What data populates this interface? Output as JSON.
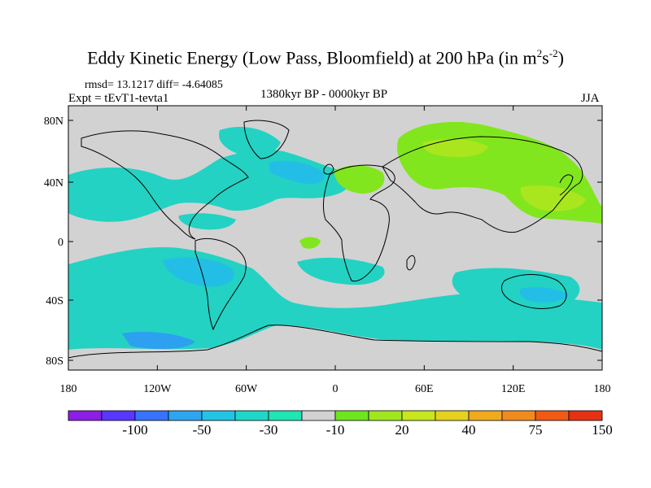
{
  "title": {
    "main": "Eddy Kinetic Energy (Low Pass, Bloomfield) at 200 hPa (in m",
    "sup1": "2",
    "mid": "s",
    "sup2": "-2",
    "end": ")"
  },
  "stats": "rmsd= 13.1217 diff= -4.64085",
  "experiment": "Expt = tEvT1-tevta1",
  "period": "1380kyr BP - 0000kyr BP",
  "season": "JJA",
  "map": {
    "lat_ticks": [
      "80N",
      "40N",
      "0",
      "40S",
      "80S"
    ],
    "lon_ticks": [
      "180",
      "120W",
      "60W",
      "0",
      "60E",
      "120E",
      "180"
    ]
  },
  "colorbar": {
    "colors": [
      "#8c1ee6",
      "#5a37ff",
      "#3773ff",
      "#2da5f0",
      "#23c3e6",
      "#1ed7c8",
      "#1ee6b4",
      "#d2d2d2",
      "#6ee61e",
      "#a0e61e",
      "#c8e61e",
      "#e6d21e",
      "#f0aa1e",
      "#f08c1e",
      "#f05a14",
      "#e63214"
    ],
    "labels": [
      "-100",
      "-50",
      "-30",
      "-10",
      "20",
      "40",
      "75",
      "150"
    ]
  },
  "palette": {
    "land_fill": "#d2d2d2",
    "neg_light": "#23d2c3",
    "neg_mid": "#23bee6",
    "neg_dark": "#2da0f0",
    "pos_light": "#82e61e",
    "pos_mid": "#aae61e"
  }
}
